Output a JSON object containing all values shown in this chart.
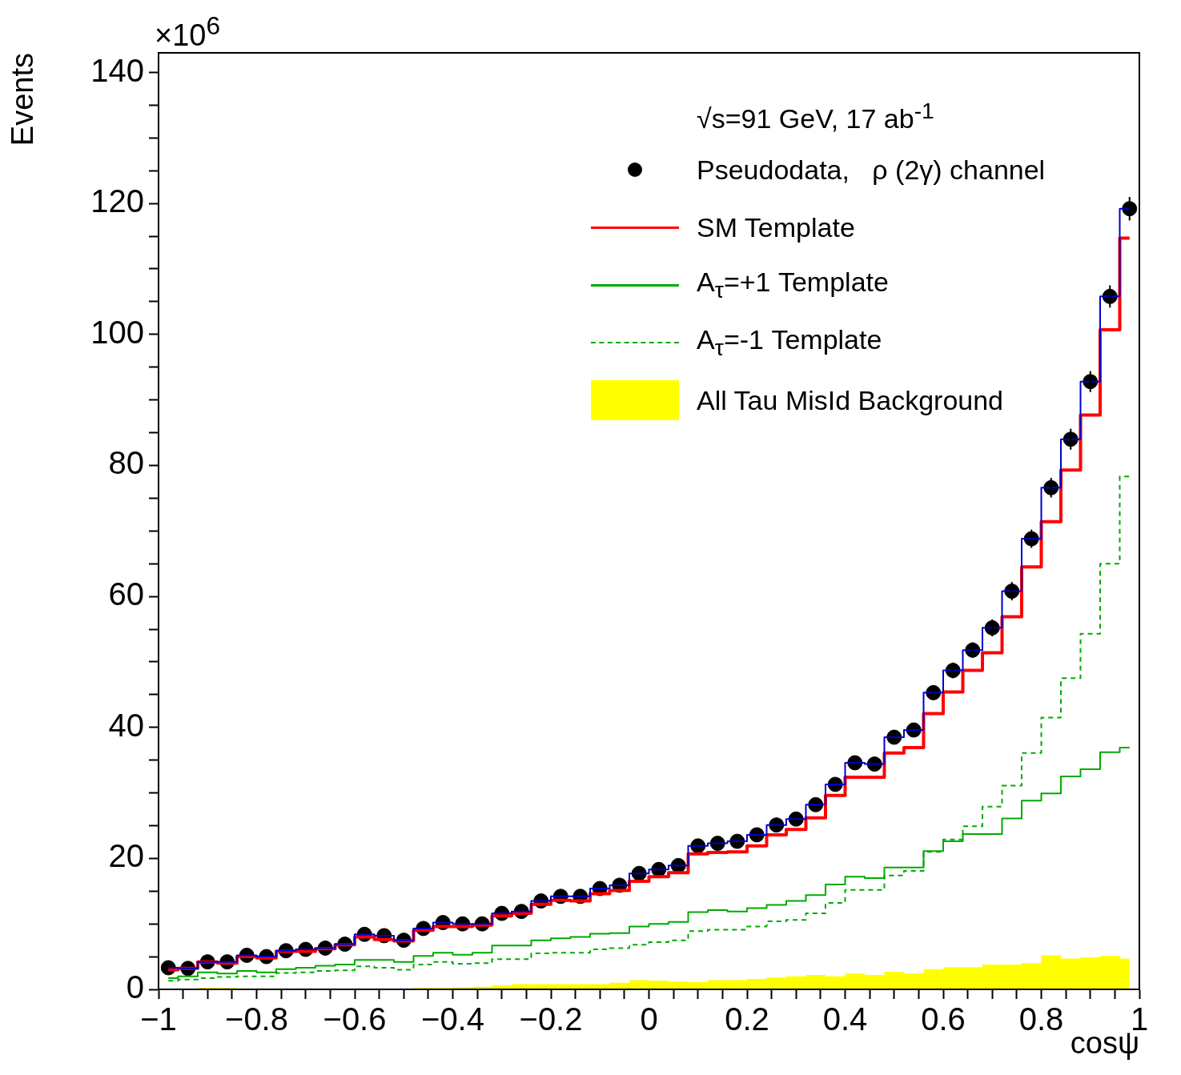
{
  "chart_data": {
    "type": "step",
    "xlabel": "cosψ",
    "ylabel": "Events",
    "legend": "top right",
    "legend_title": "√s=91 GeV, 17 ab$^{-1}$",
    "annotations": [
      "×10$^{6}$"
    ],
    "xlim": [
      -1,
      1
    ],
    "ylim": [
      0,
      143
    ],
    "xticks": [
      {
        "value": -1,
        "label": "−1"
      },
      {
        "value": -0.95,
        "label": null
      },
      {
        "value": -0.9,
        "label": null
      },
      {
        "value": -0.85,
        "label": null
      },
      {
        "value": -0.8,
        "label": "−0.8"
      },
      {
        "value": -0.75,
        "label": null
      },
      {
        "value": -0.7,
        "label": null
      },
      {
        "value": -0.65,
        "label": null
      },
      {
        "value": -0.6,
        "label": "−0.6"
      },
      {
        "value": -0.55,
        "label": null
      },
      {
        "value": -0.5,
        "label": null
      },
      {
        "value": -0.45,
        "label": null
      },
      {
        "value": -0.4,
        "label": "−0.4"
      },
      {
        "value": -0.35,
        "label": null
      },
      {
        "value": -0.3,
        "label": null
      },
      {
        "value": -0.25,
        "label": null
      },
      {
        "value": -0.2,
        "label": "−0.2"
      },
      {
        "value": -0.15,
        "label": null
      },
      {
        "value": -0.1,
        "label": null
      },
      {
        "value": -0.05,
        "label": null
      },
      0,
      {
        "value": 0.05,
        "label": null
      },
      {
        "value": 0.1,
        "label": null
      },
      {
        "value": 0.15,
        "label": null
      },
      0.2,
      {
        "value": 0.25,
        "label": null
      },
      {
        "value": 0.3,
        "label": null
      },
      {
        "value": 0.35,
        "label": null
      },
      0.4,
      {
        "value": 0.45,
        "label": null
      },
      {
        "value": 0.5,
        "label": null
      },
      {
        "value": 0.55,
        "label": null
      },
      0.6,
      {
        "value": 0.65,
        "label": null
      },
      {
        "value": 0.7,
        "label": null
      },
      {
        "value": 0.75,
        "label": null
      },
      0.8,
      {
        "value": 0.85,
        "label": null
      },
      {
        "value": 0.9,
        "label": null
      },
      {
        "value": 0.95,
        "label": null
      },
      1
    ],
    "yticks": [
      0,
      {
        "value": 5,
        "label": null
      },
      {
        "value": 10,
        "label": null
      },
      {
        "value": 15,
        "label": null
      },
      20,
      {
        "value": 25,
        "label": null
      },
      {
        "value": 30,
        "label": null
      },
      {
        "value": 35,
        "label": null
      },
      40,
      {
        "value": 45,
        "label": null
      },
      {
        "value": 50,
        "label": null
      },
      {
        "value": 55,
        "label": null
      },
      60,
      {
        "value": 65,
        "label": null
      },
      {
        "value": 70,
        "label": null
      },
      {
        "value": 75,
        "label": null
      },
      80,
      {
        "value": 85,
        "label": null
      },
      {
        "value": 90,
        "label": null
      },
      {
        "value": 95,
        "label": null
      },
      100,
      {
        "value": 105,
        "label": null
      },
      {
        "value": 110,
        "label": null
      },
      {
        "value": 115,
        "label": null
      },
      120,
      {
        "value": 125,
        "label": null
      },
      {
        "value": 130,
        "label": null
      },
      {
        "value": 135,
        "label": null
      },
      140
    ],
    "x": [
      -0.98,
      -0.94,
      -0.9,
      -0.86,
      -0.82,
      -0.78,
      -0.74,
      -0.7,
      -0.66,
      -0.62,
      -0.58,
      -0.54,
      -0.5,
      -0.46,
      -0.42,
      -0.38,
      -0.34,
      -0.3,
      -0.26,
      -0.22,
      -0.18,
      -0.14,
      -0.1,
      -0.06,
      -0.02,
      0.02,
      0.06,
      0.1,
      0.14,
      0.18,
      0.22,
      0.26,
      0.3,
      0.34,
      0.38,
      0.42,
      0.46,
      0.5,
      0.54,
      0.58,
      0.62,
      0.66,
      0.7,
      0.74,
      0.78,
      0.82,
      0.86,
      0.9,
      0.94,
      0.98
    ],
    "series": [
      {
        "type": "scatter",
        "name": "Pseudodata,   ρ (2γ) channel",
        "color": "#000000",
        "marker": "circle",
        "values": [
          3.3,
          3.2,
          4.2,
          4.2,
          5.2,
          5.0,
          5.9,
          6.1,
          6.3,
          6.9,
          8.4,
          8.2,
          7.5,
          9.3,
          10.2,
          10.0,
          10.0,
          11.6,
          11.9,
          13.5,
          14.2,
          14.2,
          15.4,
          15.9,
          17.7,
          18.3,
          18.9,
          21.9,
          22.3,
          22.6,
          23.6,
          25.1,
          26.0,
          28.2,
          31.3,
          34.6,
          34.4,
          38.5,
          39.6,
          45.3,
          48.7,
          51.8,
          55.2,
          60.8,
          68.8,
          76.6,
          84.0,
          92.8,
          105.8,
          119.2
        ],
        "errors": [
          null,
          null,
          null,
          null,
          null,
          null,
          null,
          null,
          null,
          null,
          null,
          null,
          null,
          null,
          null,
          null,
          null,
          null,
          null,
          null,
          null,
          null,
          null,
          null,
          null,
          null,
          null,
          null,
          null,
          null,
          null,
          null,
          null,
          null,
          null,
          null,
          null,
          null,
          null,
          1.1,
          1.2,
          1.2,
          1.3,
          1.4,
          1.4,
          1.5,
          1.6,
          1.6,
          1.7,
          1.8
        ]
      },
      {
        "name": "SM Template",
        "color": "#ff0000",
        "values": [
          3.0,
          3.2,
          4.2,
          4.0,
          5.0,
          4.8,
          5.8,
          5.8,
          6.2,
          6.8,
          8.0,
          7.6,
          7.4,
          9.0,
          9.6,
          9.6,
          9.8,
          11.2,
          11.6,
          13.0,
          13.6,
          13.5,
          14.6,
          15.1,
          16.5,
          17.2,
          17.8,
          20.7,
          20.9,
          21.0,
          21.9,
          23.6,
          24.4,
          26.2,
          29.6,
          32.4,
          32.4,
          36.1,
          36.9,
          42.1,
          45.4,
          48.7,
          51.4,
          56.9,
          64.5,
          71.4,
          79.3,
          87.7,
          100.7,
          114.7
        ]
      },
      {
        "name": "A$_{τ}$=+1 Template",
        "color": "#00aa00",
        "values": [
          1.7,
          2.0,
          2.6,
          2.4,
          2.8,
          2.6,
          3.1,
          3.3,
          3.6,
          3.8,
          4.5,
          4.5,
          4.2,
          5.1,
          5.6,
          5.3,
          5.6,
          6.7,
          6.7,
          7.5,
          7.8,
          8.0,
          8.5,
          8.6,
          9.6,
          10.0,
          10.3,
          11.8,
          12.1,
          11.9,
          12.4,
          12.9,
          13.5,
          14.4,
          16.0,
          17.2,
          17.0,
          18.6,
          18.6,
          21.1,
          22.6,
          23.7,
          23.7,
          26.1,
          28.8,
          29.9,
          32.5,
          33.6,
          36.2,
          36.9
        ]
      },
      {
        "name": "A$_{τ}$=-1 Template",
        "color": "#00aa00",
        "line_style": "dashed",
        "values": [
          1.3,
          1.5,
          1.7,
          1.9,
          2.0,
          2.0,
          2.5,
          2.6,
          2.8,
          2.9,
          3.5,
          3.3,
          3.0,
          3.8,
          4.2,
          3.9,
          4.0,
          4.6,
          4.6,
          5.5,
          5.6,
          5.6,
          6.1,
          6.3,
          6.8,
          7.2,
          7.5,
          8.9,
          9.1,
          9.1,
          9.6,
          10.4,
          10.6,
          11.6,
          13.2,
          15.2,
          15.2,
          17.4,
          18.1,
          21.0,
          22.9,
          24.9,
          27.9,
          31.1,
          36.1,
          41.5,
          47.5,
          54.3,
          65.0,
          78.3
        ]
      },
      {
        "type": "area",
        "name": "All Tau MisId Background",
        "color": "#ffff00",
        "values": [
          0.1,
          0.1,
          0.2,
          0.2,
          0.1,
          0.1,
          0.1,
          0.1,
          0.1,
          0.1,
          0.1,
          0.1,
          0.1,
          0.2,
          0.2,
          0.3,
          0.4,
          0.6,
          0.8,
          0.8,
          0.8,
          0.8,
          0.8,
          1.0,
          1.4,
          1.3,
          1.2,
          1.1,
          1.4,
          1.4,
          1.6,
          1.8,
          2.0,
          2.2,
          2.0,
          2.4,
          2.2,
          2.7,
          2.4,
          3.1,
          3.4,
          3.4,
          3.8,
          3.8,
          4.0,
          5.2,
          4.7,
          4.9,
          5.1,
          4.7
        ]
      },
      {
        "color": "#0000cc",
        "values": [
          3.3,
          3.2,
          4.2,
          4.2,
          5.2,
          5.0,
          5.9,
          6.1,
          6.3,
          6.9,
          8.4,
          8.2,
          7.5,
          9.3,
          10.2,
          10.0,
          10.0,
          11.6,
          11.9,
          13.5,
          14.2,
          14.2,
          15.4,
          15.9,
          17.7,
          18.3,
          18.9,
          21.9,
          22.3,
          22.6,
          23.6,
          25.1,
          26.0,
          28.2,
          31.3,
          34.6,
          34.4,
          38.5,
          39.6,
          45.3,
          48.7,
          51.8,
          55.2,
          60.8,
          68.8,
          76.6,
          84.0,
          92.8,
          105.8,
          119.2
        ]
      }
    ]
  }
}
